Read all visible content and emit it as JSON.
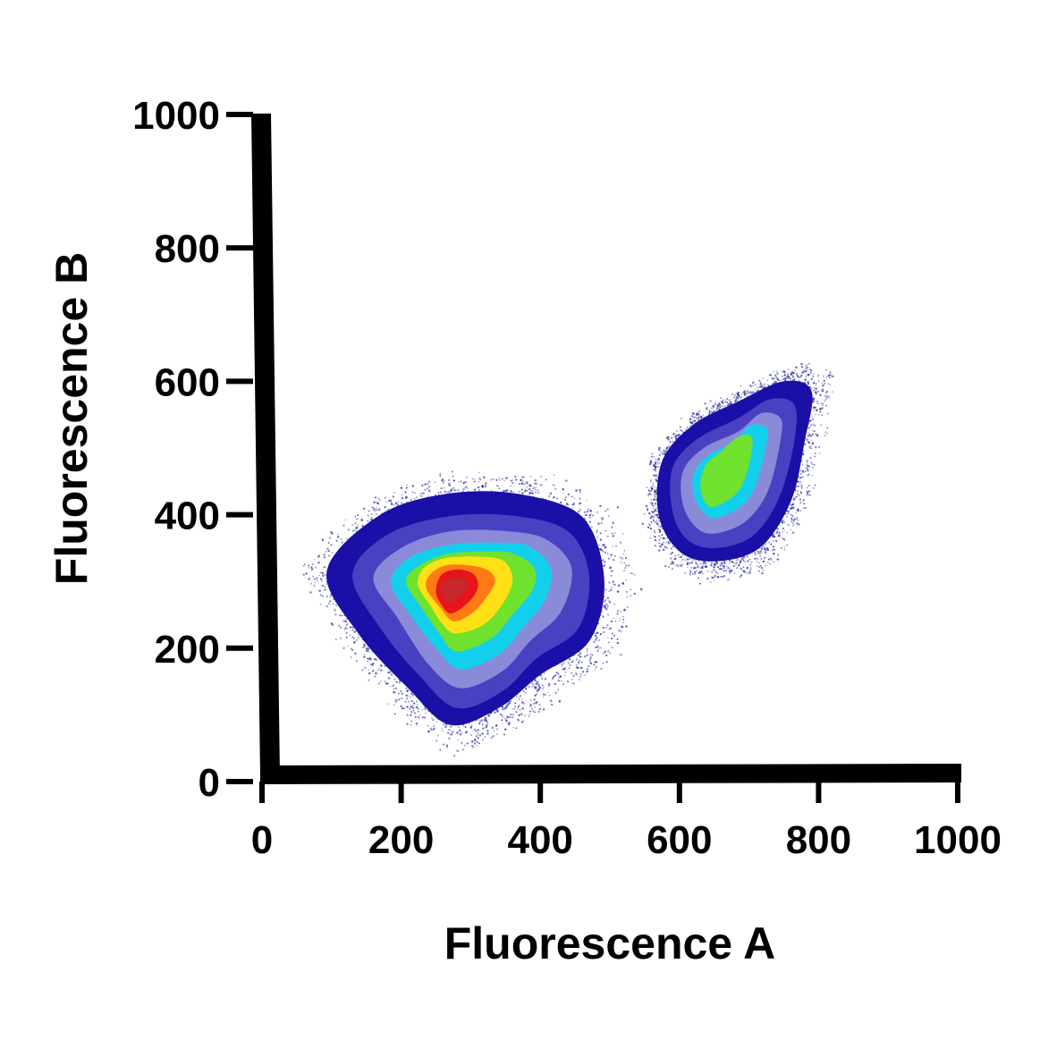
{
  "chart_data": {
    "type": "scatter",
    "subtype": "density contour plot",
    "xlabel": "Fluorescence A",
    "ylabel": "Fluorescence B",
    "xlim": [
      0,
      1000
    ],
    "ylim": [
      0,
      1000
    ],
    "x_ticks": [
      "0",
      "200",
      "400",
      "600",
      "800",
      "1000"
    ],
    "y_ticks": [
      "0",
      "200",
      "400",
      "600",
      "800",
      "1000"
    ],
    "grid": false,
    "legend": "none",
    "contour_colors": [
      "#1a0fa6",
      "#4a40c2",
      "#8a8ad8",
      "#12d0ec",
      "#6ee22c",
      "#ffe014",
      "#ff7a14",
      "#e8141c",
      "#c8282c"
    ],
    "dot_color": "#2a2aa0",
    "populations": [
      {
        "center": [
          265,
          300
        ],
        "levels": 9,
        "contours": [
          [
            [
              270,
              85
            ],
            [
              340,
              110
            ],
            [
              400,
              160
            ],
            [
              470,
              210
            ],
            [
              492,
              300
            ],
            [
              462,
              395
            ],
            [
              375,
              430
            ],
            [
              270,
              432
            ],
            [
              170,
              400
            ],
            [
              93,
              315
            ],
            [
              140,
              220
            ],
            [
              210,
              140
            ]
          ],
          [
            [
              280,
              110
            ],
            [
              345,
              135
            ],
            [
              395,
              185
            ],
            [
              455,
              230
            ],
            [
              470,
              310
            ],
            [
              440,
              375
            ],
            [
              365,
              398
            ],
            [
              270,
              398
            ],
            [
              180,
              370
            ],
            [
              130,
              310
            ],
            [
              170,
              230
            ],
            [
              225,
              160
            ]
          ],
          [
            [
              285,
              140
            ],
            [
              345,
              165
            ],
            [
              385,
              210
            ],
            [
              430,
              255
            ],
            [
              445,
              320
            ],
            [
              410,
              362
            ],
            [
              355,
              375
            ],
            [
              270,
              375
            ],
            [
              200,
              350
            ],
            [
              160,
              305
            ],
            [
              195,
              245
            ],
            [
              240,
              175
            ]
          ],
          [
            [
              285,
              168
            ],
            [
              340,
              190
            ],
            [
              375,
              230
            ],
            [
              408,
              275
            ],
            [
              415,
              320
            ],
            [
              385,
              352
            ],
            [
              345,
              358
            ],
            [
              270,
              355
            ],
            [
              213,
              336
            ],
            [
              185,
              300
            ],
            [
              213,
              250
            ],
            [
              250,
              200
            ]
          ],
          [
            [
              280,
              195
            ],
            [
              330,
              215
            ],
            [
              360,
              250
            ],
            [
              390,
              290
            ],
            [
              390,
              322
            ],
            [
              360,
              342
            ],
            [
              330,
              345
            ],
            [
              270,
              342
            ],
            [
              228,
              325
            ],
            [
              207,
              300
            ],
            [
              230,
              260
            ],
            [
              255,
              222
            ]
          ],
          [
            [
              278,
              222
            ],
            [
              318,
              235
            ],
            [
              345,
              265
            ],
            [
              360,
              300
            ],
            [
              352,
              326
            ],
            [
              330,
              336
            ],
            [
              270,
              336
            ],
            [
              235,
              322
            ],
            [
              224,
              296
            ],
            [
              243,
              262
            ],
            [
              258,
              238
            ]
          ],
          [
            [
              276,
              240
            ],
            [
              305,
              255
            ],
            [
              325,
              280
            ],
            [
              335,
              303
            ],
            [
              318,
              320
            ],
            [
              270,
              325
            ],
            [
              243,
              312
            ],
            [
              236,
              290
            ],
            [
              255,
              262
            ]
          ],
          [
            [
              272,
              252
            ],
            [
              296,
              268
            ],
            [
              310,
              290
            ],
            [
              305,
              310
            ],
            [
              282,
              318
            ],
            [
              258,
              310
            ],
            [
              250,
              285
            ],
            [
              258,
              265
            ]
          ],
          [
            [
              270,
              268
            ],
            [
              290,
              282
            ],
            [
              295,
              298
            ],
            [
              275,
              306
            ],
            [
              258,
              298
            ],
            [
              259,
              278
            ]
          ]
        ]
      },
      {
        "center": [
          650,
          480
        ],
        "levels": 5,
        "contours": [
          [
            [
              650,
              330
            ],
            [
              715,
              350
            ],
            [
              760,
              420
            ],
            [
              780,
              510
            ],
            [
              790,
              585
            ],
            [
              750,
              600
            ],
            [
              685,
              570
            ],
            [
              620,
              535
            ],
            [
              575,
              480
            ],
            [
              570,
              400
            ],
            [
              600,
              345
            ]
          ],
          [
            [
              652,
              350
            ],
            [
              705,
              368
            ],
            [
              743,
              425
            ],
            [
              765,
              510
            ],
            [
              765,
              565
            ],
            [
              730,
              573
            ],
            [
              685,
              545
            ],
            [
              625,
              513
            ],
            [
              590,
              470
            ],
            [
              590,
              405
            ],
            [
              612,
              362
            ]
          ],
          [
            [
              652,
              372
            ],
            [
              695,
              390
            ],
            [
              727,
              435
            ],
            [
              745,
              510
            ],
            [
              745,
              545
            ],
            [
              717,
              552
            ],
            [
              685,
              525
            ],
            [
              635,
              500
            ],
            [
              605,
              465
            ],
            [
              605,
              415
            ],
            [
              625,
              380
            ]
          ],
          [
            [
              652,
              395
            ],
            [
              688,
              412
            ],
            [
              710,
              445
            ],
            [
              725,
              505
            ],
            [
              725,
              530
            ],
            [
              702,
              534
            ],
            [
              678,
              510
            ],
            [
              640,
              488
            ],
            [
              620,
              460
            ],
            [
              622,
              425
            ],
            [
              636,
              402
            ]
          ],
          [
            [
              650,
              412
            ],
            [
              680,
              430
            ],
            [
              696,
              460
            ],
            [
              705,
              505
            ],
            [
              700,
              520
            ],
            [
              680,
              514
            ],
            [
              660,
              495
            ],
            [
              638,
              475
            ],
            [
              630,
              445
            ],
            [
              636,
              420
            ]
          ]
        ]
      }
    ]
  }
}
